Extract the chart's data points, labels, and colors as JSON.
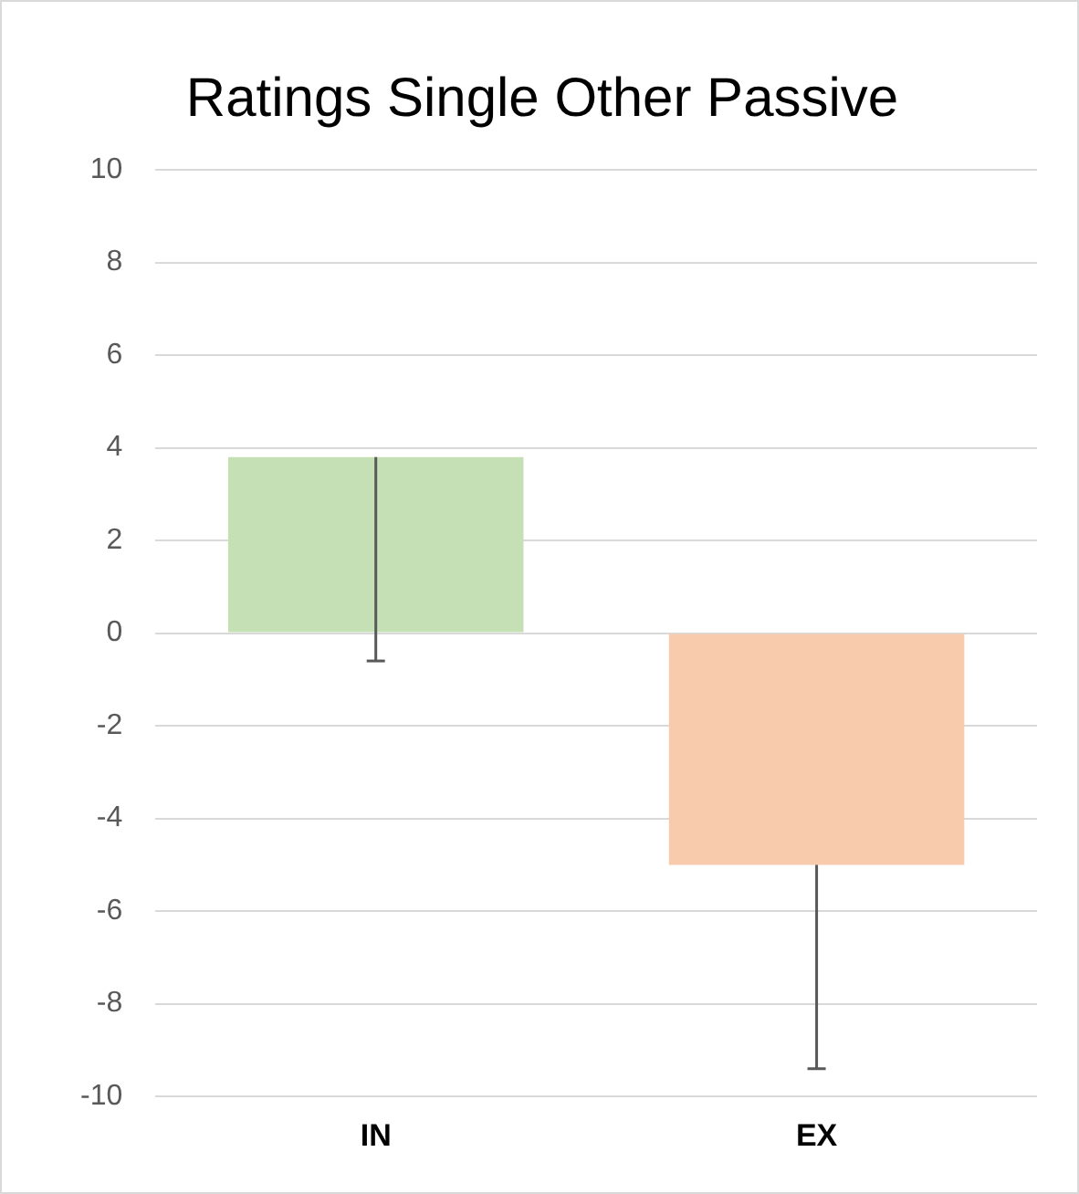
{
  "chart_data": {
    "type": "bar",
    "title": "Ratings Single Other Passive",
    "categories": [
      "IN",
      "EX"
    ],
    "values": [
      3.8,
      -5.0
    ],
    "colors": [
      "#c5e0b4",
      "#f8cbad"
    ],
    "errors": [
      [
        -0.6,
        3.8
      ],
      [
        -9.4,
        -5.0
      ]
    ],
    "ylim": [
      -10,
      10
    ],
    "yticks": [
      -10,
      -8,
      -6,
      -4,
      -2,
      0,
      2,
      4,
      6,
      8,
      10
    ],
    "grid": "y",
    "legend": false
  }
}
